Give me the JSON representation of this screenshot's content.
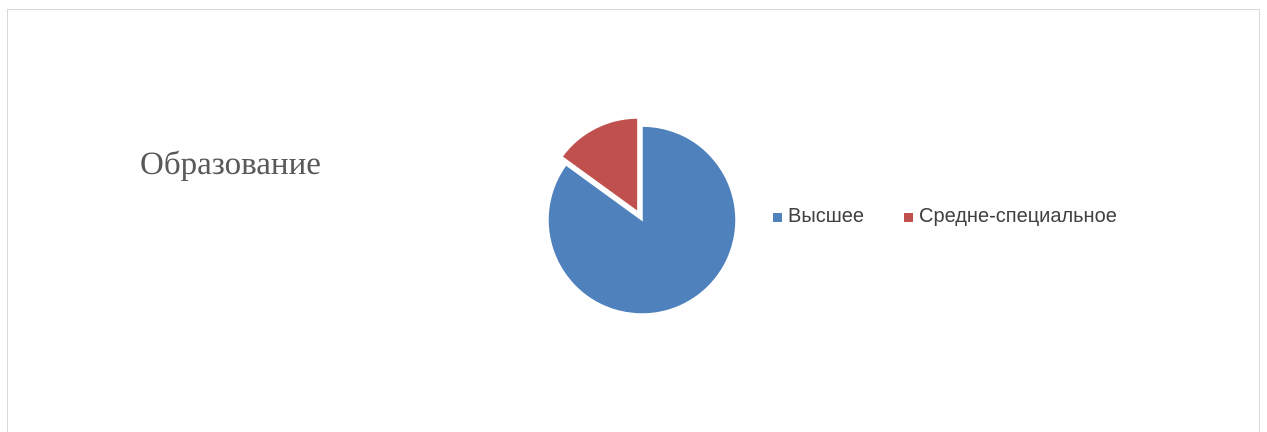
{
  "chart_data": {
    "type": "pie",
    "title": "Образование",
    "categories": [
      "Высшее",
      "Средне-специальное"
    ],
    "values": [
      85,
      15
    ],
    "colors": [
      "#4f81bd",
      "#c0504d"
    ],
    "exploded": [
      "Средне-специальное"
    ],
    "legend_position": "right"
  }
}
